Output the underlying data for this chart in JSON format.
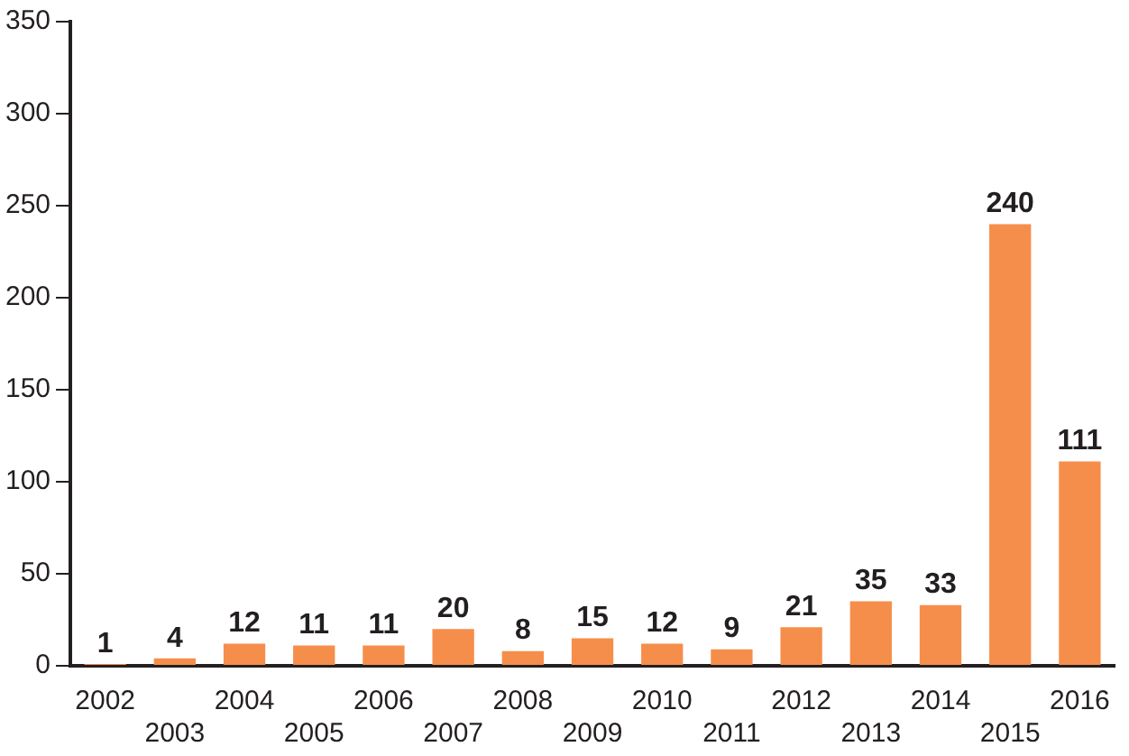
{
  "chart_data": {
    "type": "bar",
    "categories": [
      "2002",
      "2003",
      "2004",
      "2005",
      "2006",
      "2007",
      "2008",
      "2009",
      "2010",
      "2011",
      "2012",
      "2013",
      "2014",
      "2015",
      "2016"
    ],
    "values": [
      1,
      4,
      12,
      11,
      11,
      20,
      8,
      15,
      12,
      9,
      21,
      35,
      33,
      240,
      111
    ],
    "color": "#f68e4b",
    "ylim": [
      0,
      350
    ],
    "yticks": [
      0,
      50,
      100,
      150,
      200,
      250,
      300,
      350
    ],
    "grid": false,
    "legend": false,
    "data_labels": true
  }
}
